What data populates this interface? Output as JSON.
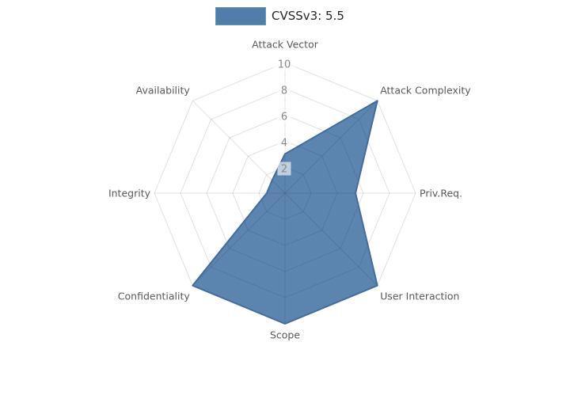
{
  "chart": {
    "legend": {
      "label": "CVSSv3: 5.5"
    },
    "chart_data": {
      "type": "radar",
      "title": "",
      "categories": [
        "Attack Vector",
        "Attack Complexity",
        "Priv.Req.",
        "User Interaction",
        "Scope",
        "Confidentiality",
        "Integrity",
        "Availability"
      ],
      "series": [
        {
          "name": "CVSSv3: 5.5",
          "values": [
            3.0,
            10,
            5.4,
            10,
            10,
            10,
            1.4,
            1.4
          ]
        }
      ],
      "rmax": 10,
      "rticks": [
        2,
        4,
        6,
        8,
        10
      ],
      "grid": "spider-web",
      "legend_position": "top-center",
      "colors": {
        "series_fill": "#4d79a7",
        "series_fill_opacity": 0.92,
        "series_edge": "#446d9c",
        "legend_swatch_fill": "#527ca9",
        "legend_swatch_border": "#6e94bd",
        "legend_text": "#262626",
        "grid_line": "rgba(45,55,75,0.15)",
        "axis_label": "#595959",
        "tick_label": "#8a8a8a",
        "tick_label_bg": "rgba(255,255,255,0.62)",
        "background": "#ffffff"
      }
    }
  }
}
